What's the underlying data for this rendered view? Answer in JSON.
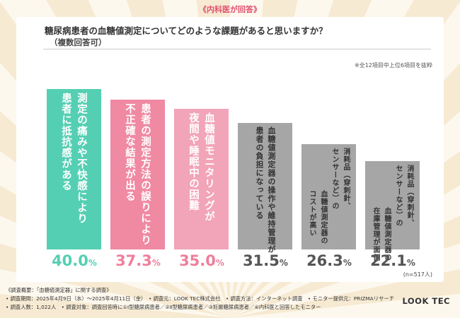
{
  "tag": "《内科医が回答》",
  "question": {
    "title": "糖尿病患者の血糖値測定についてどのような課題があると思いますか？",
    "subtitle": "（複数回答可）"
  },
  "note": "※全12項目中上位6項目を抜粋",
  "chart_data": {
    "type": "bar",
    "categories": [
      "測定の痛みや不快感により患者に抵抗感がある",
      "患者の測定方法の誤りにより不正確な結果が出る",
      "血糖値モニタリングが夜間や睡眠中の困難",
      "血糖値測定器の操作や維持管理が患者の負担になっている",
      "消耗品（穿刺針、センサーなど）のコストが高い",
      "消耗品（穿刺針、センサーなど）の在庫管理が面倒"
    ],
    "category_lines": [
      [
        "測定の痛みや不快感により",
        "患者に抵抗感がある"
      ],
      [
        "患者の測定方法の誤りにより",
        "不正確な結果が出る"
      ],
      [
        "血糖値モニタリングが",
        "夜間や睡眠中の困難"
      ],
      [
        "血糖値測定器の操作や維持管理が",
        "患者の負担になっている"
      ],
      [
        "消耗品（穿刺針、",
        "センサーなど）の",
        "血糖値測定器の",
        "コストが高い"
      ],
      [
        "消耗品（穿刺針、",
        "センサーなど）の",
        "血糖値測定器の",
        "在庫管理が面倒"
      ]
    ],
    "values": [
      40.0,
      37.3,
      35.0,
      31.5,
      26.3,
      22.1
    ],
    "value_labels": [
      {
        "num": "40.0",
        "unit": "%"
      },
      {
        "num": "37.3",
        "unit": "%"
      },
      {
        "num": "35.0",
        "unit": "%"
      },
      {
        "num": "31.5",
        "unit": "%"
      },
      {
        "num": "26.3",
        "unit": "%"
      },
      {
        "num": "22.1",
        "unit": "%"
      }
    ],
    "bar_colors": [
      "#55cfb3",
      "#f089a2",
      "#f2a4b8",
      "#a6a6a6",
      "#a6a6a6",
      "#a6a6a6"
    ],
    "text_colors": [
      "#ffffff",
      "#ffffff",
      "#ffffff",
      "#333333",
      "#333333",
      "#333333"
    ],
    "pct_colors": [
      "#55cfb3",
      "#ee7f9b",
      "#ee7f9b",
      "#555555",
      "#555555",
      "#555555"
    ],
    "ylim": [
      0,
      40
    ]
  },
  "n_label": "(n=517人)",
  "footer": {
    "line1": "《調査概要：「血糖値測定器」に関する調査》",
    "line2": "• 調査期間：2025年4月9日（水）〜2025年4月11日（金）　• 調査元：LOOK TEC株式会社　• 調査方法：インターネット調査　• モニター提供元：PRIZMAリサーチ",
    "line3": "• 調査人数：1,022人　• 調査対象：調査回答時に①Ⅰ型糖尿病患者／②Ⅱ型糖尿病患者／③妊娠糖尿病患者／④内科医と回答したモニター"
  },
  "logo": "LOOK TEC"
}
